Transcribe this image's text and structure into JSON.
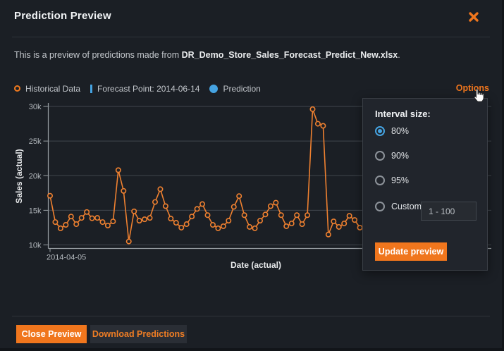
{
  "window": {
    "title": "Prediction Preview"
  },
  "subtitle": {
    "prefix": "This is a preview of predictions made from ",
    "filename": "DR_Demo_Store_Sales_Forecast_Predict_New.xlsx",
    "suffix": "."
  },
  "options_link": "Options",
  "legend": [
    {
      "label": "Historical Data",
      "marker": "ring",
      "color": "#f0791e"
    },
    {
      "label": "Forecast Point: 2014-06-14",
      "marker": "bar",
      "color": "#45a3e1"
    },
    {
      "label": "Prediction",
      "marker": "dot",
      "color": "#45a3e1"
    }
  ],
  "chart_data": {
    "type": "line",
    "title": "",
    "xlabel": "Date (actual)",
    "ylabel": "Sales (actual)",
    "unit": "thousands",
    "ylim": [
      10,
      30
    ],
    "ytick_values": [
      30,
      25,
      20,
      15,
      10
    ],
    "ytick_labels": [
      "30k",
      "25k",
      "20k",
      "15k",
      "10k"
    ],
    "xtick_labels": [
      "2014-04-05"
    ],
    "grid": "horizontal",
    "legend_position": "top-left",
    "forecast_point": "2014-06-14",
    "series": [
      {
        "name": "Historical Data",
        "color": "#ee8030",
        "start_date": "2014-04-05",
        "interval": "daily",
        "values_k": [
          17.1,
          13.3,
          12.4,
          12.9,
          14.1,
          13.0,
          13.9,
          14.75,
          13.85,
          13.9,
          13.3,
          12.8,
          13.4,
          20.8,
          17.8,
          10.5,
          14.85,
          13.5,
          13.7,
          13.9,
          16.2,
          18.05,
          15.6,
          13.8,
          13.2,
          12.5,
          13.0,
          14.1,
          15.2,
          15.9,
          14.3,
          12.9,
          12.4,
          12.7,
          13.5,
          15.5,
          17.05,
          14.3,
          12.6,
          12.4,
          13.5,
          14.4,
          15.6,
          16.1,
          14.3,
          12.7,
          13.1,
          14.3,
          13.0,
          14.3,
          29.6,
          27.5,
          27.2,
          11.5,
          13.4,
          12.6,
          13.1,
          14.2,
          13.6,
          12.5
        ]
      }
    ]
  },
  "popup": {
    "title": "Interval size:",
    "options": [
      {
        "label": "80%",
        "selected": true
      },
      {
        "label": "90%",
        "selected": false
      },
      {
        "label": "95%",
        "selected": false
      },
      {
        "label": "Custom:",
        "selected": false,
        "custom": true
      }
    ],
    "custom_input_value": "1 - 100",
    "update_button": "Update preview"
  },
  "footer": {
    "close_button": "Close Preview",
    "download_button": "Download Predictions"
  },
  "colors": {
    "accent_orange": "#f0761d",
    "chart_orange": "#ee8030",
    "blue": "#45a3e1",
    "modal_bg": "#1b1f25",
    "popup_bg": "#21252c",
    "grid": "#40464d",
    "axis": "#9aa0a5"
  }
}
